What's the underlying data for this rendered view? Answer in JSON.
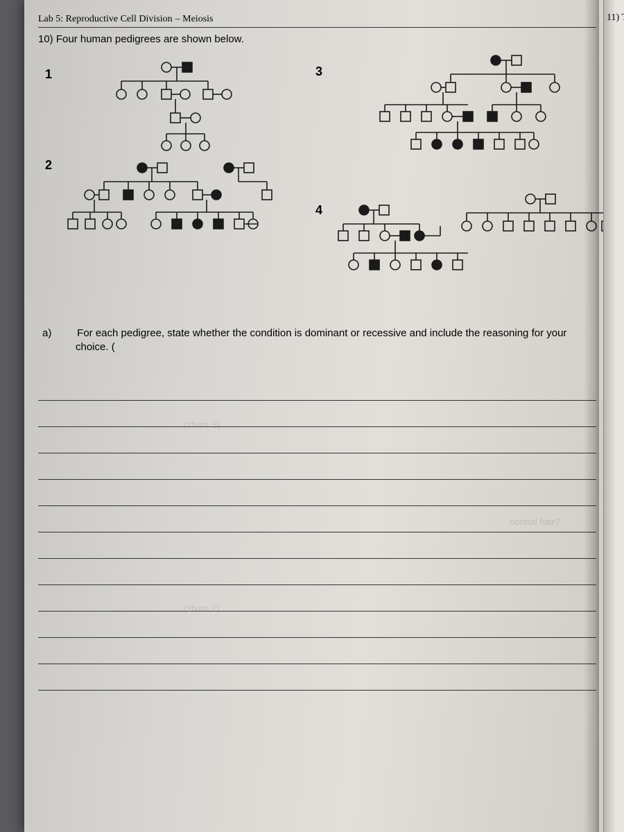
{
  "header": {
    "lab_title": "Lab 5: Reproductive Cell Division",
    "lab_subtitle": "– Meiosis"
  },
  "question": {
    "number": "10)",
    "text": "Four human pedigrees are shown below."
  },
  "pedigree_labels": {
    "p1": "1",
    "p2": "2",
    "p3": "3",
    "p4": "4"
  },
  "sub_question": {
    "label": "a)",
    "text": "For each pedigree, state whether the condition is dominant or recessive and include the reasoning for your choice. ("
  },
  "next_page": {
    "num": "11) T"
  },
  "answer_lines": {
    "count": 12
  },
  "ghost_text": {
    "g1": "(zham S)",
    "g2": "(zham 2)",
    "g3": "normal hair?"
  },
  "symbols": {
    "stroke": "#1a1a1a",
    "stroke_width": 1.6,
    "size": 15
  }
}
